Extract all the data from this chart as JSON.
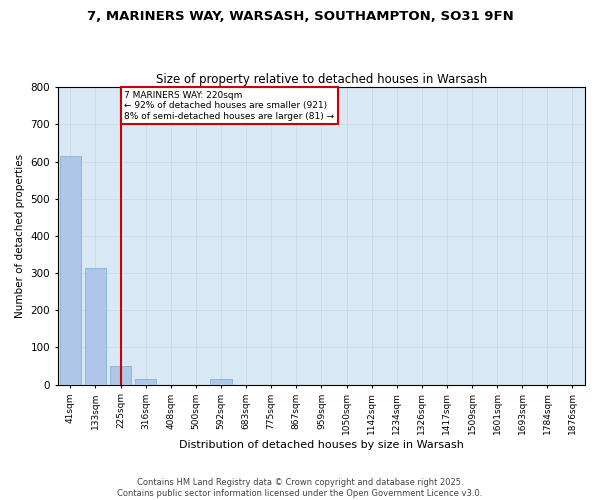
{
  "title": "7, MARINERS WAY, WARSASH, SOUTHAMPTON, SO31 9FN",
  "subtitle": "Size of property relative to detached houses in Warsash",
  "xlabel": "Distribution of detached houses by size in Warsash",
  "ylabel": "Number of detached properties",
  "footer_line1": "Contains HM Land Registry data © Crown copyright and database right 2025.",
  "footer_line2": "Contains public sector information licensed under the Open Government Licence v3.0.",
  "categories": [
    "41sqm",
    "133sqm",
    "225sqm",
    "316sqm",
    "408sqm",
    "500sqm",
    "592sqm",
    "683sqm",
    "775sqm",
    "867sqm",
    "959sqm",
    "1050sqm",
    "1142sqm",
    "1234sqm",
    "1326sqm",
    "1417sqm",
    "1509sqm",
    "1601sqm",
    "1693sqm",
    "1784sqm",
    "1876sqm"
  ],
  "values": [
    615,
    315,
    50,
    15,
    0,
    0,
    14,
    0,
    0,
    0,
    0,
    0,
    0,
    0,
    0,
    0,
    0,
    0,
    0,
    0,
    0
  ],
  "bar_color": "#aec6e8",
  "bar_edge_color": "#7aaad0",
  "highlight_bar_index": 2,
  "highlight_line_color": "#cc0000",
  "ylim": [
    0,
    800
  ],
  "yticks": [
    0,
    100,
    200,
    300,
    400,
    500,
    600,
    700,
    800
  ],
  "annotation_text": "7 MARINERS WAY: 220sqm\n← 92% of detached houses are smaller (921)\n8% of semi-detached houses are larger (81) →",
  "annotation_box_color": "#cc0000",
  "annotation_text_color": "#000000",
  "background_color": "#ffffff",
  "grid_color": "#c8d8e8",
  "ax_bg_color": "#d8e8f5"
}
